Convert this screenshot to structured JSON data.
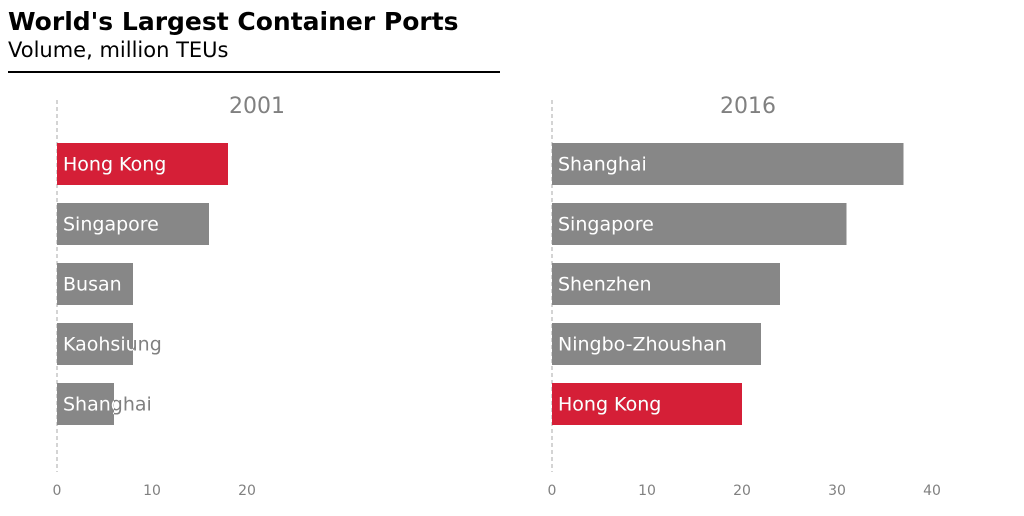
{
  "title": "World's Largest Container Ports",
  "subtitle": "Volume, million TEUs",
  "chart_data": [
    {
      "type": "bar",
      "orientation": "horizontal",
      "title": "2001",
      "categories": [
        "Hong Kong",
        "Singapore",
        "Busan",
        "Kaohsiung",
        "Shanghai"
      ],
      "values": [
        18,
        16,
        8,
        8,
        6
      ],
      "colors": [
        "#d51f37",
        "#878787",
        "#878787",
        "#878787",
        "#878787"
      ],
      "xlim": [
        0,
        25
      ],
      "xticks": [
        0,
        10,
        20
      ]
    },
    {
      "type": "bar",
      "orientation": "horizontal",
      "title": "2016",
      "categories": [
        "Shanghai",
        "Singapore",
        "Shenzhen",
        "Ningbo-Zhoushan",
        "Hong Kong"
      ],
      "values": [
        37,
        31,
        24,
        22,
        20
      ],
      "colors": [
        "#878787",
        "#878787",
        "#878787",
        "#878787",
        "#d51f37"
      ],
      "xlim": [
        0,
        45
      ],
      "xticks": [
        0,
        10,
        20,
        30,
        40
      ]
    }
  ]
}
